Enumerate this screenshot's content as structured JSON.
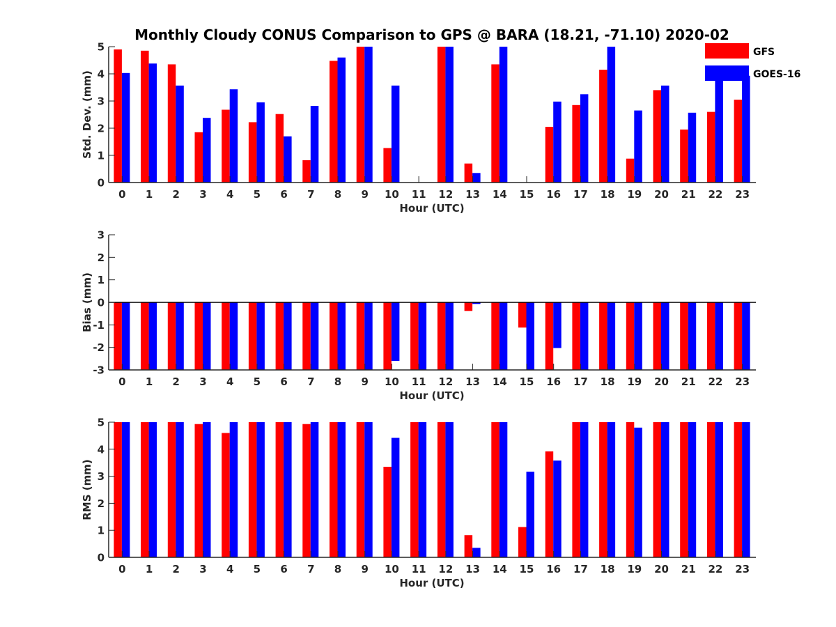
{
  "chart_data": [
    {
      "type": "bar",
      "title": "Monthly Cloudy CONUS Comparison to GPS @ BARA (18.21, -71.10) 2020-02",
      "xlabel": "Hour (UTC)",
      "ylabel": "Std. Dev. (mm)",
      "ylim": [
        0,
        5
      ],
      "yticks": [
        "0",
        "1",
        "2",
        "3",
        "4",
        "5"
      ],
      "categories": [
        "0",
        "1",
        "2",
        "3",
        "4",
        "5",
        "6",
        "7",
        "8",
        "9",
        "10",
        "11",
        "12",
        "13",
        "14",
        "15",
        "16",
        "17",
        "18",
        "19",
        "20",
        "21",
        "22",
        "23"
      ],
      "series": [
        {
          "name": "GFS",
          "color": "#ff0000",
          "values": [
            4.9,
            4.85,
            4.35,
            1.85,
            2.68,
            2.22,
            2.52,
            0.82,
            4.48,
            5.0,
            1.27,
            null,
            5.0,
            0.7,
            4.35,
            null,
            2.05,
            2.85,
            4.15,
            0.88,
            3.4,
            1.95,
            2.6,
            3.05
          ]
        },
        {
          "name": "GOES-16",
          "color": "#0000ff",
          "values": [
            4.03,
            4.38,
            3.57,
            2.38,
            3.43,
            2.95,
            1.7,
            2.82,
            4.6,
            5.0,
            3.57,
            null,
            5.0,
            0.35,
            5.0,
            null,
            2.98,
            3.25,
            5.0,
            2.65,
            3.57,
            2.57,
            4.07,
            3.93
          ]
        }
      ],
      "legend": {
        "position": "top-right",
        "entries": [
          "GFS",
          "GOES-16"
        ]
      }
    },
    {
      "type": "bar",
      "xlabel": "Hour (UTC)",
      "ylabel": "Bias (mm)",
      "ylim": [
        -3,
        3
      ],
      "yticks": [
        "-3",
        "-2",
        "-1",
        "0",
        "1",
        "2",
        "3"
      ],
      "categories": [
        "0",
        "1",
        "2",
        "3",
        "4",
        "5",
        "6",
        "7",
        "8",
        "9",
        "10",
        "11",
        "12",
        "13",
        "14",
        "15",
        "16",
        "17",
        "18",
        "19",
        "20",
        "21",
        "22",
        "23"
      ],
      "series": [
        {
          "name": "GFS",
          "color": "#ff0000",
          "values": [
            -3,
            -3,
            -3,
            -3,
            -3,
            -3,
            -3,
            -3,
            -3,
            -3,
            -3,
            -3,
            -3,
            -0.38,
            -3,
            -1.12,
            -3,
            -3,
            -3,
            -3,
            -3,
            -3,
            -3,
            -3
          ]
        },
        {
          "name": "GOES-16",
          "color": "#0000ff",
          "values": [
            -3,
            -3,
            -3,
            -3,
            -3,
            -3,
            -3,
            -3,
            -3,
            -3,
            -2.6,
            -3,
            -3,
            -0.07,
            -3,
            -3,
            -2.03,
            -3,
            -3,
            -3,
            -3,
            -3,
            -3,
            -3
          ]
        }
      ]
    },
    {
      "type": "bar",
      "xlabel": "Hour (UTC)",
      "ylabel": "RMS (mm)",
      "ylim": [
        0,
        5
      ],
      "yticks": [
        "0",
        "1",
        "2",
        "3",
        "4",
        "5"
      ],
      "categories": [
        "0",
        "1",
        "2",
        "3",
        "4",
        "5",
        "6",
        "7",
        "8",
        "9",
        "10",
        "11",
        "12",
        "13",
        "14",
        "15",
        "16",
        "17",
        "18",
        "19",
        "20",
        "21",
        "22",
        "23"
      ],
      "series": [
        {
          "name": "GFS",
          "color": "#ff0000",
          "values": [
            5.0,
            5.0,
            5.0,
            4.93,
            4.6,
            5.0,
            5.0,
            4.93,
            5.0,
            5.0,
            3.35,
            5.0,
            5.0,
            0.82,
            5.0,
            1.12,
            3.92,
            5.0,
            5.0,
            5.0,
            5.0,
            5.0,
            5.0,
            5.0
          ]
        },
        {
          "name": "GOES-16",
          "color": "#0000ff",
          "values": [
            5.0,
            5.0,
            5.0,
            5.0,
            5.0,
            5.0,
            5.0,
            5.0,
            5.0,
            5.0,
            4.42,
            5.0,
            5.0,
            0.35,
            5.0,
            3.17,
            3.58,
            5.0,
            5.0,
            4.8,
            5.0,
            5.0,
            5.0,
            5.0
          ]
        }
      ]
    }
  ]
}
